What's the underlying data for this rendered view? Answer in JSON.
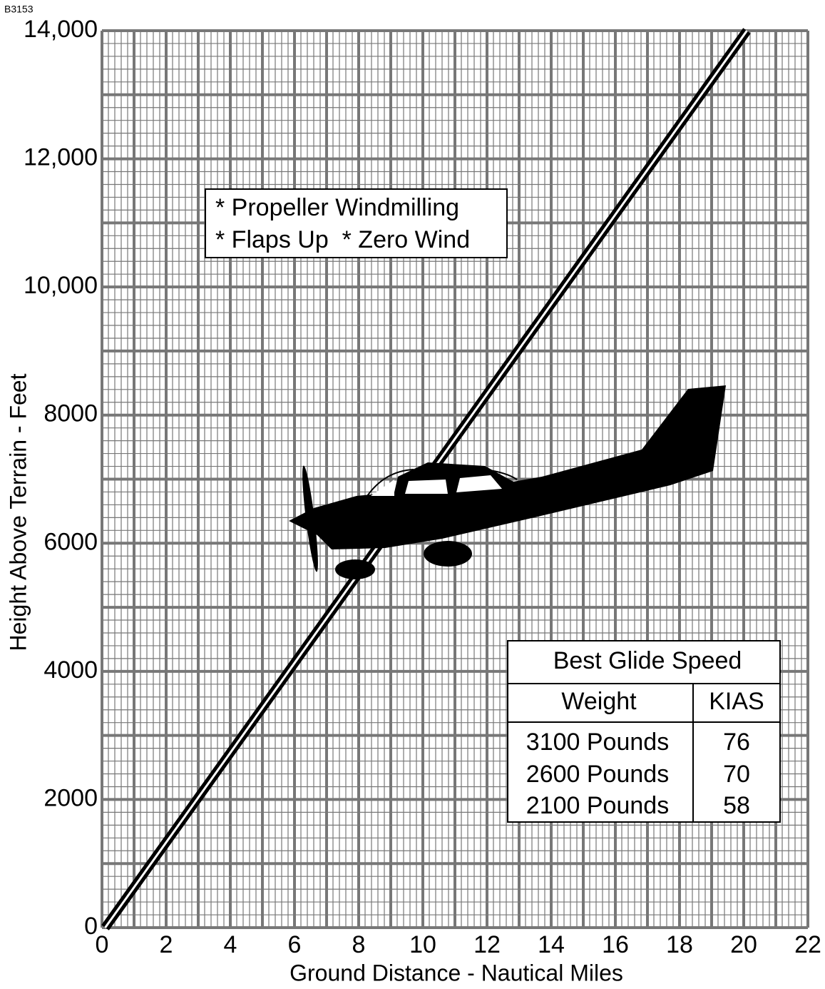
{
  "chart_data": {
    "type": "line",
    "figure_id": "B3153",
    "x_label": "Ground Distance - Nautical Miles",
    "y_label": "Height Above Terrain - Feet",
    "xlim": [
      0,
      22
    ],
    "xticks": [
      0,
      2,
      4,
      6,
      8,
      10,
      12,
      14,
      16,
      18,
      20,
      22
    ],
    "ylim": [
      0,
      14000
    ],
    "yticks": [
      0,
      2000,
      4000,
      6000,
      8000,
      {
        "value": 10000,
        "label": "10,000"
      },
      {
        "value": 12000,
        "label": "12,000"
      },
      {
        "value": 14000,
        "label": "14,000"
      }
    ],
    "grid": true,
    "series": [
      {
        "color": "#000000",
        "x": [
          0.1,
          20.1
        ],
        "values": [
          0,
          14000
        ]
      }
    ],
    "annotations": [
      "* Propeller Windmilling",
      "* Flaps Up  * Zero Wind"
    ],
    "table": {
      "title": "Best Glide Speed",
      "header": [
        "Weight",
        "KIAS"
      ],
      "rows": [
        [
          "3100 Pounds",
          "76"
        ],
        [
          "2600 Pounds",
          "70"
        ],
        [
          "2100 Pounds",
          "58"
        ]
      ]
    }
  }
}
